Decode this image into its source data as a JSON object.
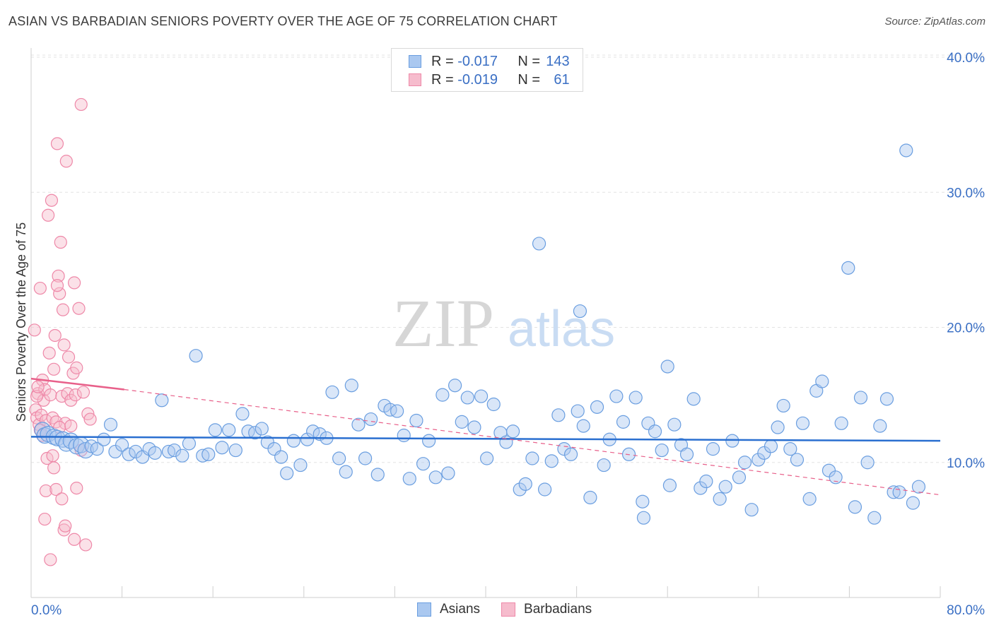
{
  "header": {
    "title": "ASIAN VS BARBADIAN SENIORS POVERTY OVER THE AGE OF 75 CORRELATION CHART",
    "source": "Source: ZipAtlas.com"
  },
  "watermark": {
    "zip": "ZIP",
    "atlas": "atlas"
  },
  "legend": {
    "asians": {
      "r_label": "R =",
      "r_value": "-0.017",
      "n_label": "N =",
      "n_value": "143"
    },
    "barbadians": {
      "r_label": "R =",
      "r_value": "-0.019",
      "n_label": "N =",
      "n_value": "61"
    }
  },
  "bottom_legend": {
    "asians": "Asians",
    "barbadians": "Barbadians"
  },
  "colors": {
    "asian_fill": "#aac8f0",
    "asian_stroke": "#6a9ee0",
    "asian_line": "#2a6fd0",
    "barb_fill": "#f6bccd",
    "barb_stroke": "#ee88a8",
    "barb_line": "#e8608a",
    "axis_text": "#3a6fc4",
    "grid": "#e3e3e3"
  },
  "chart_data": {
    "type": "scatter",
    "title": "ASIAN VS BARBADIAN SENIORS POVERTY OVER THE AGE OF 75 CORRELATION CHART",
    "xlabel": "",
    "ylabel": "Seniors Poverty Over the Age of 75",
    "xlim": [
      0,
      80
    ],
    "ylim": [
      0,
      40
    ],
    "x_tick_labels": [
      "0.0%",
      "80.0%"
    ],
    "y_ticks": [
      10,
      20,
      30,
      40
    ],
    "y_tick_labels": [
      "10.0%",
      "20.0%",
      "30.0%",
      "40.0%"
    ],
    "series": [
      {
        "name": "Asians",
        "R": -0.017,
        "N": 143,
        "trend": {
          "x0": 0,
          "y0": 11.9,
          "x1": 80,
          "y1": 11.6
        },
        "points": [
          [
            1.0,
            12.4
          ],
          [
            1.2,
            12.0
          ],
          [
            1.5,
            12.1
          ],
          [
            2.0,
            11.9
          ],
          [
            2.3,
            11.8
          ],
          [
            2.8,
            11.7
          ],
          [
            3.1,
            11.4
          ],
          [
            3.5,
            11.6
          ],
          [
            4.0,
            11.2
          ],
          [
            4.4,
            11.3
          ],
          [
            4.8,
            10.9
          ],
          [
            5.3,
            11.2
          ],
          [
            5.8,
            11.0
          ],
          [
            6.4,
            11.7
          ],
          [
            7.0,
            12.8
          ],
          [
            7.4,
            10.8
          ],
          [
            8.0,
            11.3
          ],
          [
            8.6,
            10.6
          ],
          [
            9.2,
            10.8
          ],
          [
            9.8,
            10.4
          ],
          [
            10.4,
            11.0
          ],
          [
            10.9,
            10.7
          ],
          [
            11.5,
            14.6
          ],
          [
            12.1,
            10.8
          ],
          [
            12.6,
            10.9
          ],
          [
            13.3,
            10.5
          ],
          [
            13.9,
            11.4
          ],
          [
            14.5,
            17.9
          ],
          [
            15.1,
            10.5
          ],
          [
            15.6,
            10.6
          ],
          [
            16.2,
            12.4
          ],
          [
            16.8,
            11.1
          ],
          [
            17.4,
            12.4
          ],
          [
            18.0,
            10.9
          ],
          [
            18.6,
            13.6
          ],
          [
            19.1,
            12.3
          ],
          [
            19.7,
            12.2
          ],
          [
            20.3,
            12.5
          ],
          [
            20.8,
            11.5
          ],
          [
            21.4,
            11.0
          ],
          [
            22.0,
            10.4
          ],
          [
            22.5,
            9.2
          ],
          [
            23.1,
            11.6
          ],
          [
            23.7,
            9.8
          ],
          [
            24.3,
            11.7
          ],
          [
            24.8,
            12.3
          ],
          [
            25.4,
            12.1
          ],
          [
            26.0,
            11.8
          ],
          [
            26.5,
            15.2
          ],
          [
            27.1,
            10.3
          ],
          [
            27.7,
            9.3
          ],
          [
            28.2,
            15.7
          ],
          [
            28.8,
            12.8
          ],
          [
            29.4,
            10.3
          ],
          [
            29.9,
            13.2
          ],
          [
            30.5,
            9.1
          ],
          [
            31.1,
            14.2
          ],
          [
            31.6,
            13.9
          ],
          [
            32.2,
            13.8
          ],
          [
            32.8,
            12.0
          ],
          [
            33.3,
            8.8
          ],
          [
            33.9,
            13.1
          ],
          [
            34.5,
            9.9
          ],
          [
            35.0,
            11.6
          ],
          [
            35.6,
            8.9
          ],
          [
            36.2,
            15.0
          ],
          [
            36.7,
            9.2
          ],
          [
            37.3,
            15.7
          ],
          [
            37.9,
            13.0
          ],
          [
            38.4,
            14.8
          ],
          [
            39.0,
            12.6
          ],
          [
            39.6,
            14.9
          ],
          [
            40.1,
            10.3
          ],
          [
            40.7,
            14.3
          ],
          [
            41.3,
            12.2
          ],
          [
            41.8,
            11.5
          ],
          [
            42.4,
            12.3
          ],
          [
            43.0,
            8.0
          ],
          [
            43.5,
            8.4
          ],
          [
            44.1,
            10.3
          ],
          [
            44.7,
            26.2
          ],
          [
            45.2,
            8.0
          ],
          [
            45.8,
            10.1
          ],
          [
            46.4,
            13.5
          ],
          [
            46.9,
            11.0
          ],
          [
            47.5,
            10.6
          ],
          [
            48.1,
            13.8
          ],
          [
            48.6,
            12.7
          ],
          [
            49.2,
            7.4
          ],
          [
            49.8,
            14.1
          ],
          [
            50.4,
            9.8
          ],
          [
            50.9,
            11.7
          ],
          [
            51.5,
            14.9
          ],
          [
            52.1,
            13.0
          ],
          [
            52.6,
            10.6
          ],
          [
            53.2,
            14.8
          ],
          [
            53.8,
            7.1
          ],
          [
            54.3,
            12.9
          ],
          [
            54.9,
            12.3
          ],
          [
            55.5,
            10.9
          ],
          [
            56.0,
            17.1
          ],
          [
            56.6,
            12.8
          ],
          [
            57.2,
            11.3
          ],
          [
            57.7,
            10.6
          ],
          [
            58.3,
            14.7
          ],
          [
            58.9,
            8.1
          ],
          [
            59.4,
            8.6
          ],
          [
            60.0,
            11.0
          ],
          [
            60.6,
            7.3
          ],
          [
            61.1,
            8.2
          ],
          [
            61.7,
            11.6
          ],
          [
            62.3,
            8.9
          ],
          [
            62.8,
            10.0
          ],
          [
            63.4,
            6.5
          ],
          [
            64.0,
            10.2
          ],
          [
            64.5,
            10.7
          ],
          [
            65.1,
            11.2
          ],
          [
            65.7,
            12.6
          ],
          [
            66.2,
            14.2
          ],
          [
            66.8,
            11.0
          ],
          [
            67.4,
            10.2
          ],
          [
            67.9,
            12.9
          ],
          [
            68.5,
            7.3
          ],
          [
            69.1,
            15.3
          ],
          [
            69.6,
            16.0
          ],
          [
            70.2,
            9.4
          ],
          [
            70.8,
            8.9
          ],
          [
            71.3,
            12.9
          ],
          [
            71.9,
            24.4
          ],
          [
            72.5,
            6.7
          ],
          [
            73.0,
            14.8
          ],
          [
            73.6,
            10.0
          ],
          [
            74.2,
            5.9
          ],
          [
            74.7,
            12.7
          ],
          [
            75.3,
            14.7
          ],
          [
            75.9,
            7.8
          ],
          [
            76.4,
            7.8
          ],
          [
            77.0,
            33.1
          ],
          [
            77.6,
            7.0
          ],
          [
            78.1,
            8.2
          ],
          [
            48.3,
            21.2
          ],
          [
            56.2,
            8.3
          ],
          [
            53.9,
            5.9
          ]
        ]
      },
      {
        "name": "Barbadians",
        "R": -0.019,
        "N": 61,
        "trend_solid": {
          "x0": 0,
          "y0": 16.2,
          "x1": 8.2,
          "y1": 15.4
        },
        "trend_dashed": {
          "x0": 8.2,
          "y0": 15.4,
          "x1": 80,
          "y1": 7.6
        },
        "points": [
          [
            0.3,
            19.8
          ],
          [
            0.4,
            13.9
          ],
          [
            0.5,
            13.3
          ],
          [
            0.6,
            15.1
          ],
          [
            0.7,
            12.8
          ],
          [
            0.8,
            22.9
          ],
          [
            0.9,
            13.5
          ],
          [
            1.0,
            16.1
          ],
          [
            1.1,
            14.6
          ],
          [
            1.2,
            15.4
          ],
          [
            1.3,
            13.1
          ],
          [
            1.4,
            10.3
          ],
          [
            1.5,
            28.3
          ],
          [
            1.6,
            18.1
          ],
          [
            1.7,
            15.0
          ],
          [
            1.8,
            29.4
          ],
          [
            1.9,
            13.3
          ],
          [
            2.0,
            16.9
          ],
          [
            2.1,
            19.4
          ],
          [
            2.2,
            13.0
          ],
          [
            2.3,
            33.6
          ],
          [
            2.4,
            23.8
          ],
          [
            2.5,
            22.5
          ],
          [
            2.6,
            26.3
          ],
          [
            2.7,
            14.9
          ],
          [
            2.8,
            21.3
          ],
          [
            2.9,
            18.7
          ],
          [
            3.0,
            12.9
          ],
          [
            3.1,
            32.3
          ],
          [
            3.2,
            15.1
          ],
          [
            3.3,
            17.8
          ],
          [
            3.5,
            14.6
          ],
          [
            3.7,
            16.6
          ],
          [
            3.8,
            23.3
          ],
          [
            3.9,
            15.0
          ],
          [
            4.0,
            17.0
          ],
          [
            4.2,
            21.4
          ],
          [
            4.4,
            36.5
          ],
          [
            4.6,
            15.2
          ],
          [
            5.0,
            13.6
          ],
          [
            0.5,
            14.9
          ],
          [
            0.6,
            15.6
          ],
          [
            0.8,
            12.4
          ],
          [
            1.0,
            12.0
          ],
          [
            1.2,
            5.8
          ],
          [
            1.3,
            7.9
          ],
          [
            1.7,
            2.8
          ],
          [
            2.0,
            9.6
          ],
          [
            2.2,
            8.0
          ],
          [
            2.3,
            23.1
          ],
          [
            2.5,
            12.6
          ],
          [
            2.7,
            7.3
          ],
          [
            2.9,
            5.0
          ],
          [
            3.0,
            5.3
          ],
          [
            3.5,
            12.7
          ],
          [
            3.8,
            4.3
          ],
          [
            4.0,
            8.1
          ],
          [
            4.4,
            10.9
          ],
          [
            4.8,
            3.9
          ],
          [
            5.2,
            13.2
          ],
          [
            1.9,
            10.5
          ]
        ]
      }
    ]
  }
}
